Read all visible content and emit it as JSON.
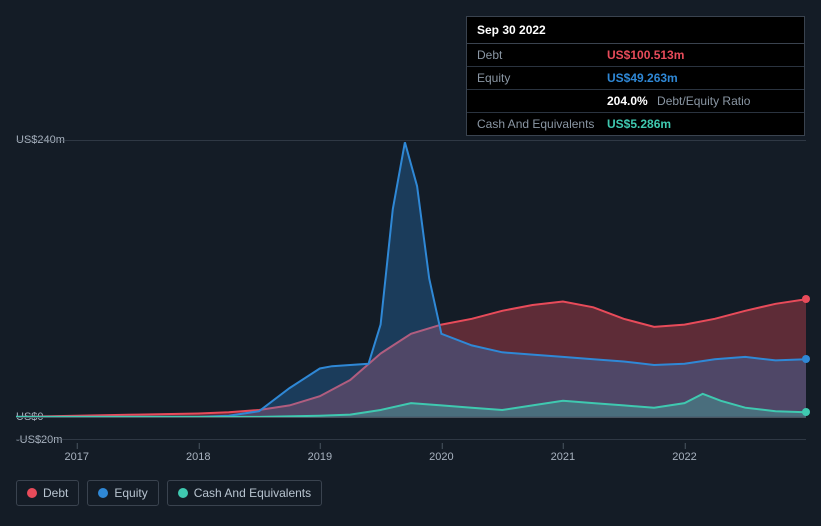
{
  "tooltip": {
    "date": "Sep 30 2022",
    "rows": {
      "debt": {
        "label": "Debt",
        "value": "US$100.513m",
        "color": "#e84b5a"
      },
      "equity": {
        "label": "Equity",
        "value": "US$49.263m",
        "color": "#2f88d6"
      },
      "ratio": {
        "value": "204.0%",
        "label": "Debt/Equity Ratio"
      },
      "cash": {
        "label": "Cash And Equivalents",
        "value": "US$5.286m",
        "color": "#3fc9b0"
      }
    }
  },
  "chart": {
    "type": "area",
    "background_color": "#141c26",
    "grid_color": "#4a5561",
    "label_color": "#a8b2bf",
    "label_fontsize": 11,
    "ylim": [
      -20,
      240
    ],
    "yticks": [
      {
        "v": 240,
        "label": "US$240m"
      },
      {
        "v": 0,
        "label": "US$0"
      },
      {
        "v": -20,
        "label": "-US$20m"
      }
    ],
    "xlim": [
      2016.5,
      2023.0
    ],
    "xticks": [
      2017,
      2018,
      2019,
      2020,
      2021,
      2022
    ],
    "series": {
      "debt": {
        "label": "Debt",
        "stroke": "#e84b5a",
        "fill": "#e84b5a",
        "fill_opacity": 0.35,
        "line_width": 2,
        "points": [
          [
            2016.5,
            0
          ],
          [
            2017.0,
            1
          ],
          [
            2017.5,
            2
          ],
          [
            2018.0,
            3
          ],
          [
            2018.25,
            4
          ],
          [
            2018.5,
            6
          ],
          [
            2018.75,
            10
          ],
          [
            2019.0,
            18
          ],
          [
            2019.25,
            32
          ],
          [
            2019.5,
            55
          ],
          [
            2019.75,
            72
          ],
          [
            2020.0,
            80
          ],
          [
            2020.25,
            85
          ],
          [
            2020.5,
            92
          ],
          [
            2020.75,
            97
          ],
          [
            2021.0,
            100
          ],
          [
            2021.25,
            95
          ],
          [
            2021.5,
            85
          ],
          [
            2021.75,
            78
          ],
          [
            2022.0,
            80
          ],
          [
            2022.25,
            85
          ],
          [
            2022.5,
            92
          ],
          [
            2022.75,
            98
          ],
          [
            2023.0,
            102
          ]
        ]
      },
      "equity": {
        "label": "Equity",
        "stroke": "#2f88d6",
        "fill": "#2f88d6",
        "fill_opacity": 0.3,
        "line_width": 2,
        "points": [
          [
            2016.5,
            0
          ],
          [
            2017.0,
            0
          ],
          [
            2017.5,
            0
          ],
          [
            2018.0,
            0
          ],
          [
            2018.25,
            1
          ],
          [
            2018.5,
            5
          ],
          [
            2018.75,
            25
          ],
          [
            2019.0,
            42
          ],
          [
            2019.1,
            44
          ],
          [
            2019.25,
            45
          ],
          [
            2019.4,
            46
          ],
          [
            2019.5,
            80
          ],
          [
            2019.6,
            180
          ],
          [
            2019.7,
            238
          ],
          [
            2019.8,
            200
          ],
          [
            2019.9,
            120
          ],
          [
            2020.0,
            72
          ],
          [
            2020.25,
            62
          ],
          [
            2020.5,
            56
          ],
          [
            2020.75,
            54
          ],
          [
            2021.0,
            52
          ],
          [
            2021.25,
            50
          ],
          [
            2021.5,
            48
          ],
          [
            2021.75,
            45
          ],
          [
            2022.0,
            46
          ],
          [
            2022.25,
            50
          ],
          [
            2022.5,
            52
          ],
          [
            2022.75,
            49
          ],
          [
            2023.0,
            50
          ]
        ]
      },
      "cash": {
        "label": "Cash And Equivalents",
        "stroke": "#3fc9b0",
        "fill": "#3fc9b0",
        "fill_opacity": 0.3,
        "line_width": 2,
        "points": [
          [
            2016.5,
            0
          ],
          [
            2017.0,
            0
          ],
          [
            2017.5,
            0
          ],
          [
            2018.0,
            0
          ],
          [
            2018.5,
            0
          ],
          [
            2019.0,
            1
          ],
          [
            2019.25,
            2
          ],
          [
            2019.5,
            6
          ],
          [
            2019.75,
            12
          ],
          [
            2020.0,
            10
          ],
          [
            2020.25,
            8
          ],
          [
            2020.5,
            6
          ],
          [
            2020.75,
            10
          ],
          [
            2021.0,
            14
          ],
          [
            2021.25,
            12
          ],
          [
            2021.5,
            10
          ],
          [
            2021.75,
            8
          ],
          [
            2022.0,
            12
          ],
          [
            2022.15,
            20
          ],
          [
            2022.3,
            14
          ],
          [
            2022.5,
            8
          ],
          [
            2022.75,
            5
          ],
          [
            2023.0,
            4
          ]
        ]
      }
    }
  },
  "legend": {
    "items": [
      {
        "key": "debt",
        "label": "Debt",
        "color": "#e84b5a"
      },
      {
        "key": "equity",
        "label": "Equity",
        "color": "#2f88d6"
      },
      {
        "key": "cash",
        "label": "Cash And Equivalents",
        "color": "#3fc9b0"
      }
    ]
  }
}
